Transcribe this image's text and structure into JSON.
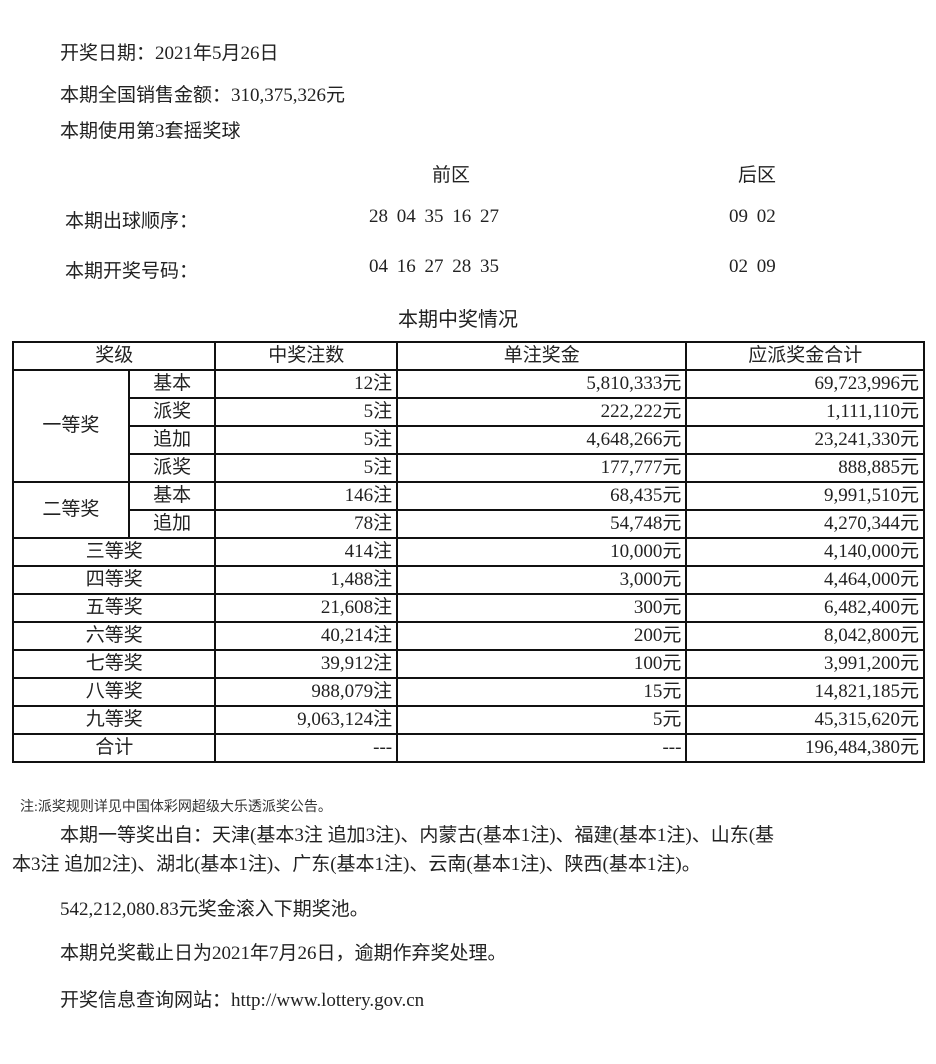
{
  "header": {
    "draw_date": "开奖日期：2021年5月26日",
    "sales": "本期全国销售金额：310,375,326元",
    "ball_set": "本期使用第3套摇奖球"
  },
  "draw": {
    "front_label": "前区",
    "back_label": "后区",
    "order_label": "本期出球顺序：",
    "order_front": "28 04 35 16 27",
    "order_back": "09 02",
    "result_label": "本期开奖号码：",
    "result_front": "04 16 27 28 35",
    "result_back": "02 09"
  },
  "table": {
    "title": "本期中奖情况",
    "headers": [
      "奖级",
      "中奖注数",
      "单注奖金",
      "应派奖金合计"
    ],
    "first_prize": "一等奖",
    "second_prize": "二等奖",
    "rows": [
      {
        "level": "",
        "sub": "基本",
        "count": "12注",
        "unit": "5,810,333元",
        "total": "69,723,996元"
      },
      {
        "level": "",
        "sub": "派奖",
        "count": "5注",
        "unit": "222,222元",
        "total": "1,111,110元"
      },
      {
        "level": "",
        "sub": "追加",
        "count": "5注",
        "unit": "4,648,266元",
        "total": "23,241,330元"
      },
      {
        "level": "",
        "sub": "派奖",
        "count": "5注",
        "unit": "177,777元",
        "total": "888,885元"
      },
      {
        "level": "",
        "sub": "基本",
        "count": "146注",
        "unit": "68,435元",
        "total": "9,991,510元"
      },
      {
        "level": "",
        "sub": "追加",
        "count": "78注",
        "unit": "54,748元",
        "total": "4,270,344元"
      },
      {
        "level": "三等奖",
        "count": "414注",
        "unit": "10,000元",
        "total": "4,140,000元"
      },
      {
        "level": "四等奖",
        "count": "1,488注",
        "unit": "3,000元",
        "total": "4,464,000元"
      },
      {
        "level": "五等奖",
        "count": "21,608注",
        "unit": "300元",
        "total": "6,482,400元"
      },
      {
        "level": "六等奖",
        "count": "40,214注",
        "unit": "200元",
        "total": "8,042,800元"
      },
      {
        "level": "七等奖",
        "count": "39,912注",
        "unit": "100元",
        "total": "3,991,200元"
      },
      {
        "level": "八等奖",
        "count": "988,079注",
        "unit": "15元",
        "total": "14,821,185元"
      },
      {
        "level": "九等奖",
        "count": "9,063,124注",
        "unit": "5元",
        "total": "45,315,620元"
      },
      {
        "level": "合计",
        "count": "---",
        "unit": "---",
        "total": "196,484,380元"
      }
    ]
  },
  "footer": {
    "note": "注:派奖规则详见中国体彩网超级大乐透派奖公告。",
    "winners_line1": "本期一等奖出自：天津(基本3注 追加3注)、内蒙古(基本1注)、福建(基本1注)、山东(基",
    "winners_line2": "本3注 追加2注)、湖北(基本1注)、广东(基本1注)、云南(基本1注)、陕西(基本1注)。",
    "rollover": "542,212,080.83元奖金滚入下期奖池。",
    "deadline": "本期兑奖截止日为2021年7月26日，逾期作弃奖处理。",
    "website": "开奖信息查询网站：http://www.lottery.gov.cn"
  }
}
